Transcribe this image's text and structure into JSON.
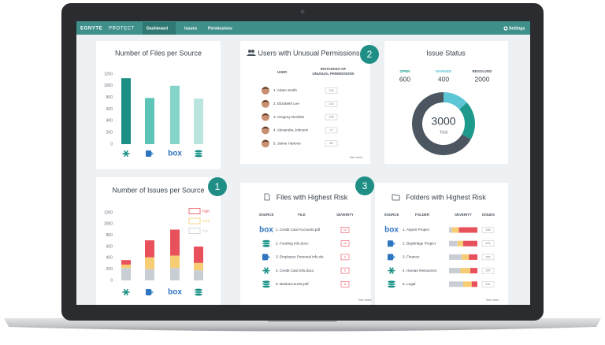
{
  "nav": {
    "brand": "EGNYTE",
    "product": "PROTECT",
    "tabs": [
      "Dashboard",
      "Issues",
      "Permissions"
    ],
    "settings": "Settings"
  },
  "badges": [
    1,
    2,
    3
  ],
  "files_per_source": {
    "type": "bar",
    "title": "Number of Files per Source",
    "categories": [
      null,
      null,
      "box",
      null
    ],
    "values": [
      1130,
      790,
      1000,
      780
    ],
    "colors": [
      "#1b8f84",
      "#5ec4b8",
      "#85d4ca",
      "#b8e6df"
    ],
    "ylim": [
      0,
      1200
    ],
    "yticks": [
      0,
      200,
      400,
      600,
      800,
      1000,
      1200
    ]
  },
  "issues_per_source": {
    "type": "stacked_bar",
    "title": "Number of Issues per Source",
    "categories": [
      null,
      null,
      "box",
      null
    ],
    "series": [
      {
        "name": "low",
        "color": "#c9ced4",
        "values": [
          220,
          200,
          220,
          180
        ]
      },
      {
        "name": "med",
        "color": "#f7cd74",
        "values": [
          60,
          210,
          220,
          130
        ]
      },
      {
        "name": "high",
        "color": "#e8505b",
        "values": [
          80,
          300,
          460,
          290
        ]
      }
    ],
    "ylim": [
      0,
      1200
    ],
    "yticks": [
      0,
      200,
      400,
      600,
      800,
      1000,
      1200
    ]
  },
  "issue_status": {
    "type": "donut",
    "title": "Issue Status",
    "categories": [
      "OPEN",
      "WARNED",
      "RESOLVED"
    ],
    "values": [
      600,
      400,
      2000
    ],
    "colors": [
      "#1d9a8c",
      "#5cc6d6",
      "#4c5660"
    ],
    "total": 3000,
    "total_label": "Total"
  },
  "users": {
    "title": "Users with Unusual Permissions",
    "columns": [
      "USER",
      "INSTANCES OF UNUSUAL PERMISSIONS"
    ],
    "rows": [
      [
        "1. Adam Smith",
        134
      ],
      [
        "2. Elizabeth Lee",
        120
      ],
      [
        "3. Gregory Deckles",
        105
      ],
      [
        "4. Alexandra Johnson",
        77
      ],
      [
        "5. Jaime Hariono",
        65
      ]
    ],
    "see_more": "See more"
  },
  "files_risk": {
    "title": "Files with Highest Risk",
    "columns": [
      "SOURCE",
      "FILE",
      "SEVERITY"
    ],
    "rows": [
      [
        "box",
        "1. Credit Card Accounts.pdf",
        10
      ],
      [
        null,
        "2. Funding info.docx",
        10
      ],
      [
        null,
        "3. Employee Personal info.xls",
        9
      ],
      [
        null,
        "4. Credit Card info.docx",
        9
      ],
      [
        null,
        "5. Bankaccounts.pdf",
        8
      ]
    ],
    "see_more": "See more"
  },
  "folders_risk": {
    "title": "Folders with Highest Risk",
    "columns": [
      "SOURCE",
      "FOLDER",
      "SEVERITY",
      "ISSUES"
    ],
    "rows": [
      [
        "box",
        "1. Airport Project",
        [
          10,
          25,
          65
        ],
        456
      ],
      [
        null,
        "2. BayBridge Project",
        [
          30,
          20,
          50
        ],
        401
      ],
      [
        null,
        "3. Finance",
        [
          45,
          25,
          30
        ],
        350
      ],
      [
        null,
        "4. Human Resources",
        [
          40,
          35,
          25
        ],
        300
      ],
      [
        null,
        "5. Legal",
        [
          50,
          30,
          20
        ],
        250
      ]
    ],
    "see_more": "See more"
  }
}
